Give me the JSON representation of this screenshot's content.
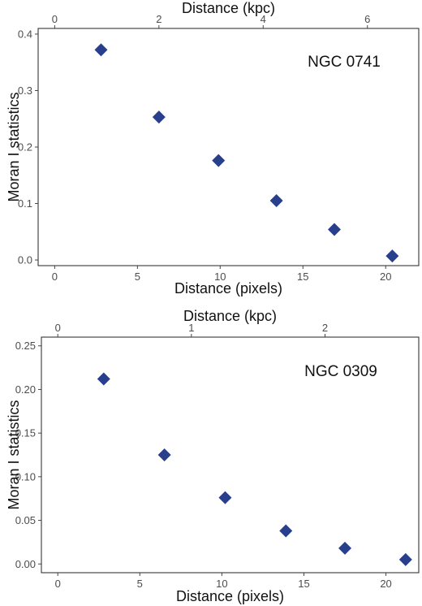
{
  "chart_data": [
    {
      "type": "scatter",
      "annotation": "NGC 0741",
      "xlabel": "Distance (pixels)",
      "x2label": "Distance (kpc)",
      "ylabel": "Moran I statistics",
      "xlim": [
        -1,
        22
      ],
      "ylim": [
        -0.01,
        0.41
      ],
      "x_ticks": [
        0,
        5,
        10,
        15,
        20
      ],
      "x2_ticks": [
        0,
        2,
        4,
        6
      ],
      "kpc_per_pixel": 0.3175,
      "y_ticks": [
        "0.0",
        "0.1",
        "0.2",
        "0.3",
        "0.4"
      ],
      "grid": false,
      "marker": "diamond",
      "marker_color": "#283f8e",
      "points": [
        {
          "x": 2.8,
          "y": 0.372
        },
        {
          "x": 6.3,
          "y": 0.253
        },
        {
          "x": 9.9,
          "y": 0.176
        },
        {
          "x": 13.4,
          "y": 0.105
        },
        {
          "x": 16.9,
          "y": 0.054
        },
        {
          "x": 20.4,
          "y": 0.007
        }
      ]
    },
    {
      "type": "scatter",
      "annotation": "NGC 0309",
      "xlabel": "Distance (pixels)",
      "x2label": "Distance (kpc)",
      "ylabel": "Moran I statistics",
      "xlim": [
        -1,
        22
      ],
      "ylim": [
        -0.01,
        0.26
      ],
      "x_ticks": [
        0,
        5,
        10,
        15,
        20
      ],
      "x2_ticks": [
        0,
        1,
        2
      ],
      "kpc_per_pixel": 0.1228,
      "y_ticks": [
        "0.00",
        "0.05",
        "0.10",
        "0.15",
        "0.20",
        "0.25"
      ],
      "grid": false,
      "marker": "diamond",
      "marker_color": "#283f8e",
      "points": [
        {
          "x": 2.8,
          "y": 0.212
        },
        {
          "x": 6.5,
          "y": 0.125
        },
        {
          "x": 10.2,
          "y": 0.076
        },
        {
          "x": 13.9,
          "y": 0.038
        },
        {
          "x": 17.5,
          "y": 0.018
        },
        {
          "x": 21.2,
          "y": 0.005
        }
      ]
    }
  ]
}
